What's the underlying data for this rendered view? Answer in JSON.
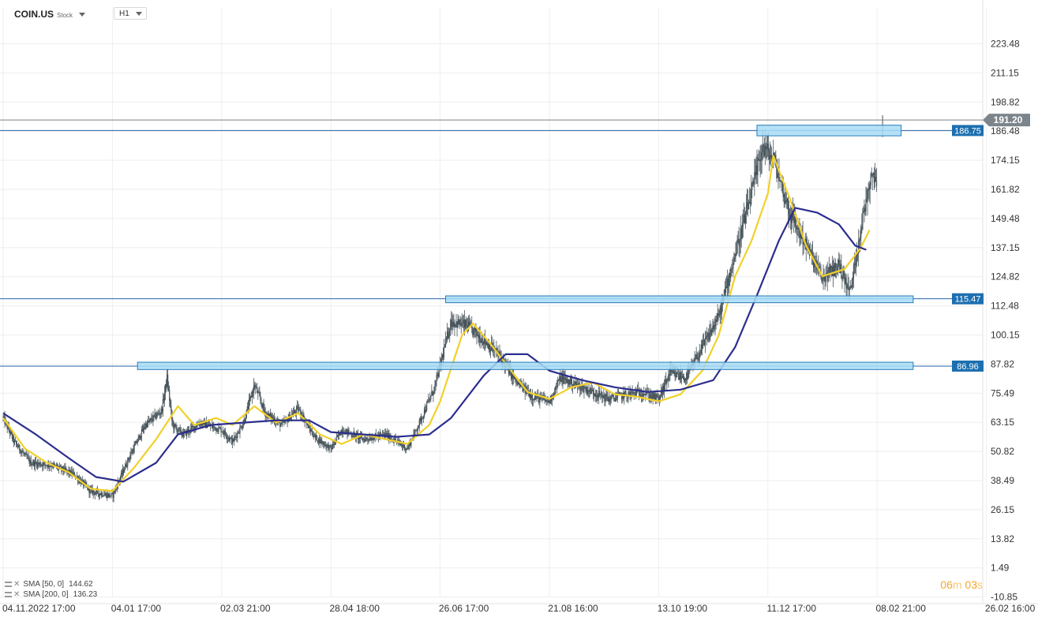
{
  "header": {
    "symbol": "COIN.US",
    "symbol_type": "Stock",
    "timeframe": "H1"
  },
  "timer": {
    "minutes": "06",
    "min_unit": "m",
    "seconds": "03",
    "sec_unit": "s"
  },
  "colors": {
    "candle": "#46535a",
    "sma50": "#f2d027",
    "sma200": "#2b2e8c",
    "zone_fill": "#a7dcf6",
    "zone_stroke": "#2a7db8",
    "level_line": "#2466a8",
    "level_label": "#1c6fb0",
    "price_label": "#7c848c",
    "grid": "#eeeeee"
  },
  "chart_data": {
    "type": "candlestick",
    "symbol": "COIN.US",
    "timeframe": "H1",
    "grid": true,
    "y_axis_position": "right",
    "ylim": [
      -10.85,
      236.0
    ],
    "y_ticks": [
      "223.48",
      "211.15",
      "198.82",
      "186.48",
      "174.15",
      "161.82",
      "149.48",
      "137.15",
      "124.82",
      "112.48",
      "100.15",
      "87.82",
      "75.49",
      "63.15",
      "50.82",
      "38.49",
      "26.15",
      "13.82",
      "1.49",
      "-10.85"
    ],
    "x_ticks": [
      "04.11.2022 17:00",
      "04.01 17:00",
      "02.03 21:00",
      "28.04 18:00",
      "26.06 17:00",
      "21.08 16:00",
      "13.10 19:00",
      "11.12 17:00",
      "08.02 21:00",
      "26.02 16:00"
    ],
    "current_price": {
      "value": 191.2,
      "label": "191.20"
    },
    "levels": [
      {
        "label": "186.75",
        "value": 186.75,
        "zone": [
          184.5,
          189.0
        ],
        "zone_start": 6.9,
        "zone_end": 8.22
      },
      {
        "label": "115.47",
        "value": 115.47,
        "zone": [
          113.8,
          116.7
        ],
        "zone_start": 4.05,
        "zone_end": 8.33
      },
      {
        "label": "86.96",
        "value": 86.96,
        "zone": [
          85.5,
          88.6
        ],
        "zone_start": 1.23,
        "zone_end": 8.33
      }
    ],
    "price_path": [
      [
        0.0,
        65
      ],
      [
        0.1,
        55
      ],
      [
        0.25,
        46
      ],
      [
        0.45,
        45
      ],
      [
        0.65,
        41
      ],
      [
        0.8,
        34
      ],
      [
        1.0,
        32
      ],
      [
        1.15,
        48
      ],
      [
        1.3,
        62
      ],
      [
        1.45,
        68
      ],
      [
        1.5,
        82
      ],
      [
        1.55,
        62
      ],
      [
        1.65,
        58
      ],
      [
        1.8,
        63
      ],
      [
        2.0,
        60
      ],
      [
        2.1,
        55
      ],
      [
        2.2,
        63
      ],
      [
        2.3,
        79
      ],
      [
        2.4,
        67
      ],
      [
        2.55,
        62
      ],
      [
        2.7,
        69
      ],
      [
        2.85,
        57
      ],
      [
        3.0,
        52
      ],
      [
        3.1,
        60
      ],
      [
        3.3,
        56
      ],
      [
        3.5,
        58
      ],
      [
        3.7,
        52
      ],
      [
        3.8,
        62
      ],
      [
        3.95,
        78
      ],
      [
        4.1,
        106
      ],
      [
        4.25,
        104
      ],
      [
        4.4,
        98
      ],
      [
        4.55,
        91
      ],
      [
        4.7,
        80
      ],
      [
        4.85,
        74
      ],
      [
        5.0,
        72
      ],
      [
        5.1,
        82
      ],
      [
        5.25,
        79
      ],
      [
        5.4,
        76
      ],
      [
        5.55,
        73
      ],
      [
        5.7,
        75
      ],
      [
        5.85,
        76
      ],
      [
        6.0,
        73
      ],
      [
        6.1,
        84
      ],
      [
        6.25,
        82
      ],
      [
        6.4,
        95
      ],
      [
        6.55,
        108
      ],
      [
        6.65,
        126
      ],
      [
        6.75,
        143
      ],
      [
        6.85,
        160
      ],
      [
        6.95,
        180
      ],
      [
        7.05,
        175
      ],
      [
        7.2,
        152
      ],
      [
        7.35,
        138
      ],
      [
        7.5,
        124
      ],
      [
        7.65,
        130
      ],
      [
        7.75,
        118
      ],
      [
        7.85,
        145
      ],
      [
        7.95,
        170
      ],
      [
        8.0,
        164
      ]
    ],
    "series": [
      {
        "name": "SMA [50, 0]",
        "legend_value": "144.62",
        "values": [
          [
            0.0,
            65
          ],
          [
            0.2,
            52
          ],
          [
            0.4,
            46
          ],
          [
            0.6,
            42
          ],
          [
            0.8,
            35
          ],
          [
            1.0,
            34
          ],
          [
            1.2,
            44
          ],
          [
            1.4,
            56
          ],
          [
            1.6,
            70
          ],
          [
            1.75,
            62
          ],
          [
            1.95,
            65
          ],
          [
            2.1,
            62
          ],
          [
            2.3,
            70
          ],
          [
            2.5,
            63
          ],
          [
            2.7,
            67
          ],
          [
            2.9,
            58
          ],
          [
            3.1,
            54
          ],
          [
            3.3,
            58
          ],
          [
            3.5,
            56
          ],
          [
            3.7,
            54
          ],
          [
            3.9,
            62
          ],
          [
            4.0,
            72
          ],
          [
            4.1,
            86
          ],
          [
            4.2,
            100
          ],
          [
            4.3,
            105
          ],
          [
            4.45,
            97
          ],
          [
            4.6,
            88
          ],
          [
            4.8,
            76
          ],
          [
            5.0,
            73
          ],
          [
            5.2,
            78
          ],
          [
            5.4,
            80
          ],
          [
            5.6,
            75
          ],
          [
            5.8,
            74
          ],
          [
            6.0,
            72
          ],
          [
            6.2,
            75
          ],
          [
            6.4,
            85
          ],
          [
            6.55,
            100
          ],
          [
            6.7,
            125
          ],
          [
            6.85,
            140
          ],
          [
            7.0,
            160
          ],
          [
            7.05,
            176
          ],
          [
            7.2,
            158
          ],
          [
            7.35,
            138
          ],
          [
            7.5,
            125
          ],
          [
            7.7,
            128
          ],
          [
            7.85,
            137
          ],
          [
            7.93,
            144.6
          ]
        ]
      },
      {
        "name": "SMA [200, 0]",
        "legend_value": "136.23",
        "values": [
          [
            0.0,
            67
          ],
          [
            0.3,
            58
          ],
          [
            0.6,
            48
          ],
          [
            0.85,
            40
          ],
          [
            1.1,
            38
          ],
          [
            1.4,
            46
          ],
          [
            1.6,
            58
          ],
          [
            1.9,
            62
          ],
          [
            2.2,
            63
          ],
          [
            2.5,
            64
          ],
          [
            2.8,
            64
          ],
          [
            3.0,
            59
          ],
          [
            3.3,
            58
          ],
          [
            3.6,
            57
          ],
          [
            3.9,
            58
          ],
          [
            4.1,
            65
          ],
          [
            4.4,
            83
          ],
          [
            4.6,
            92
          ],
          [
            4.8,
            92
          ],
          [
            5.0,
            85
          ],
          [
            5.3,
            81
          ],
          [
            5.6,
            78
          ],
          [
            5.9,
            76
          ],
          [
            6.2,
            77
          ],
          [
            6.5,
            81
          ],
          [
            6.7,
            95
          ],
          [
            6.9,
            117
          ],
          [
            7.1,
            140
          ],
          [
            7.25,
            154
          ],
          [
            7.45,
            152
          ],
          [
            7.65,
            147
          ],
          [
            7.8,
            138
          ],
          [
            7.9,
            136.2
          ]
        ]
      }
    ]
  }
}
